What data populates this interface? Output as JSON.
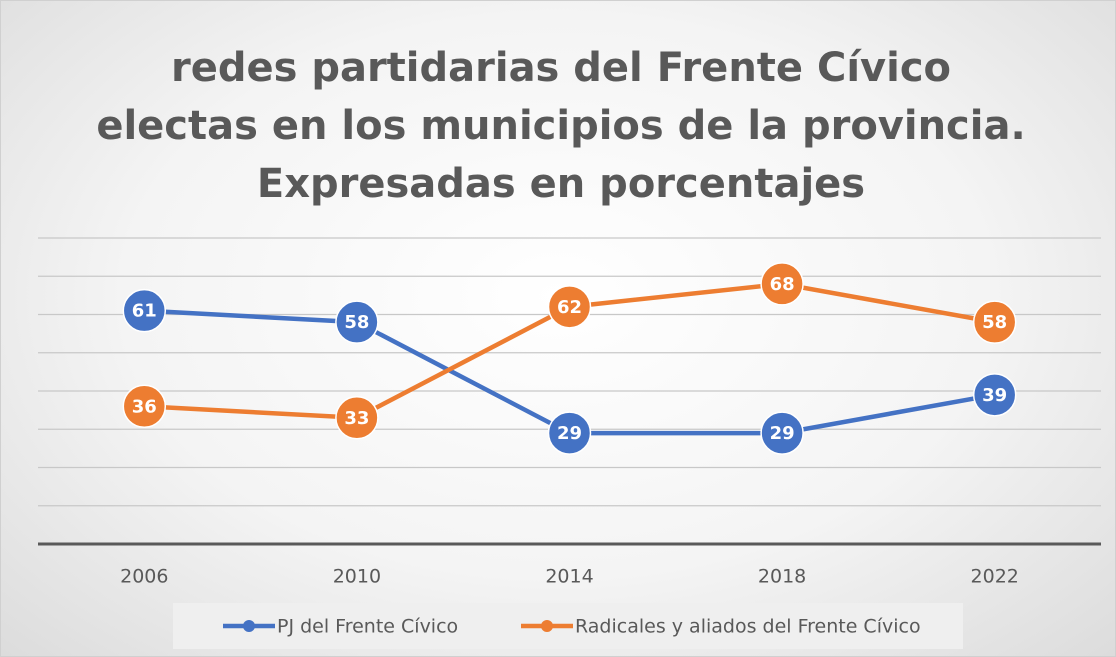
{
  "chart_data": {
    "type": "line",
    "title": "redes partidarias del Frente Cívico electas en los municipios de la provincia. Expresadas en porcentajes",
    "categories": [
      "2006",
      "2010",
      "2014",
      "2018",
      "2022"
    ],
    "series": [
      {
        "name": "PJ del Frente Cívico",
        "color": "#4472c4",
        "values": [
          61,
          58,
          29,
          29,
          39
        ]
      },
      {
        "name": "Radicales y aliados del Frente Cívico",
        "color": "#ed7d31",
        "values": [
          36,
          33,
          62,
          68,
          58
        ]
      }
    ],
    "ylim": [
      0,
      80
    ],
    "yticks": [
      0,
      10,
      20,
      30,
      40,
      50,
      60,
      70,
      80
    ],
    "ytick_labels": false,
    "grid": true,
    "data_labels": true,
    "legend": "bottom"
  }
}
